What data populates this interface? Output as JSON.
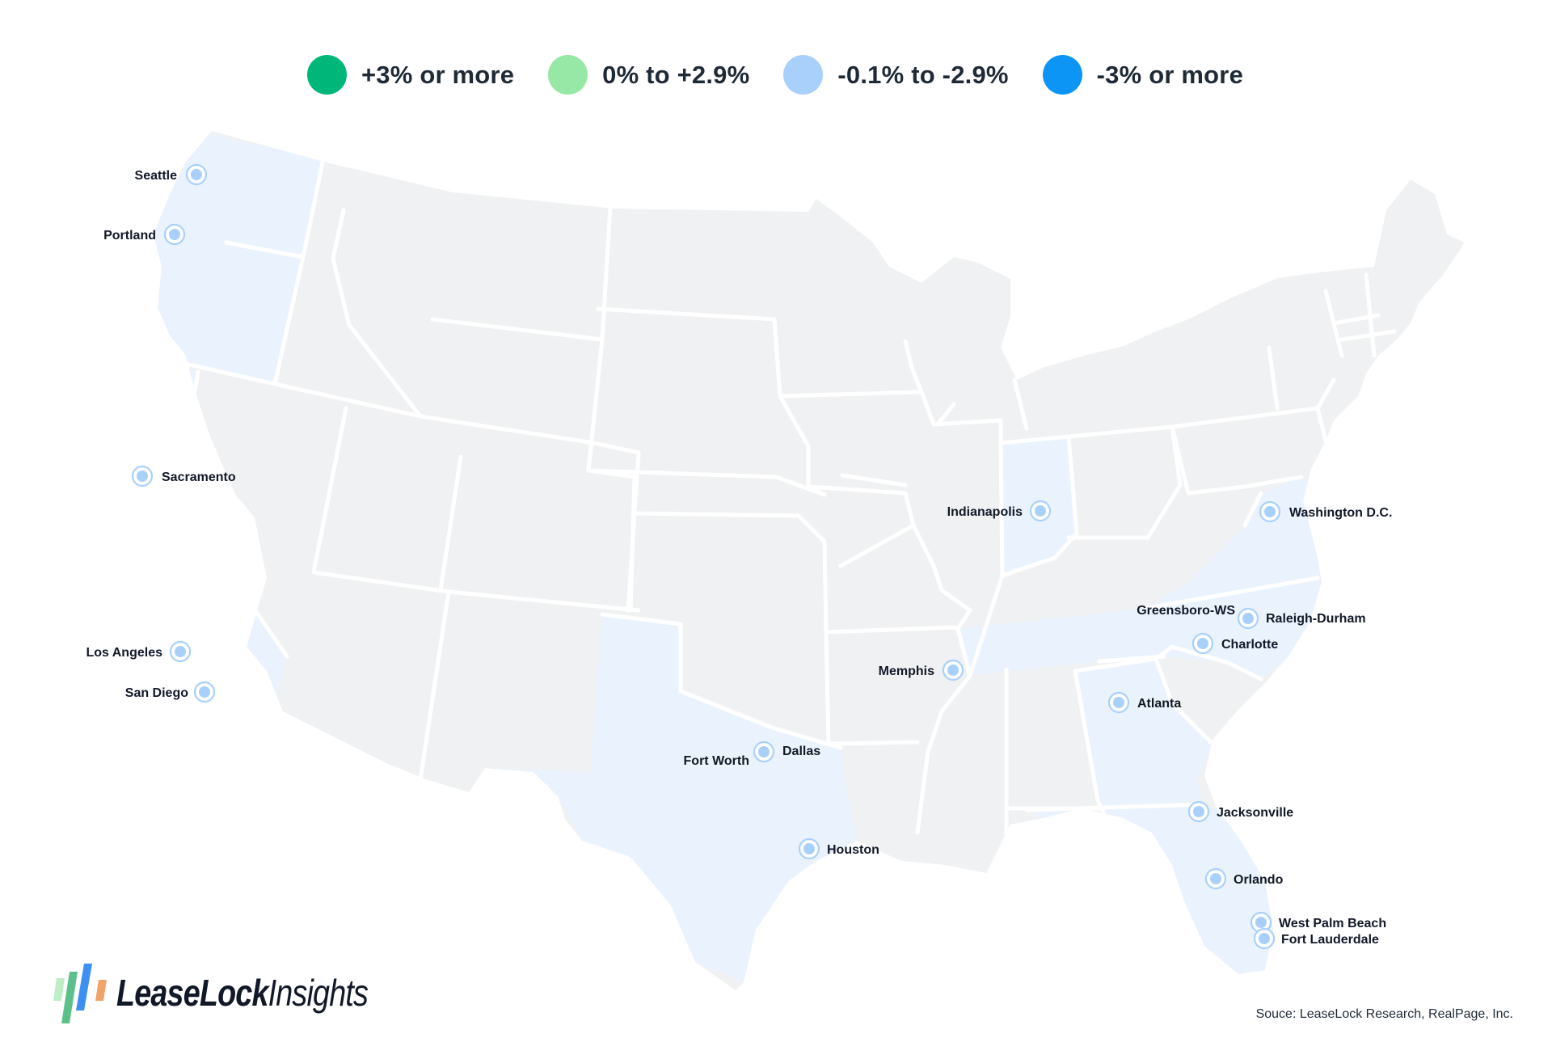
{
  "legend": [
    {
      "label": "+3% or more",
      "color": "#00b77a"
    },
    {
      "label": "0% to +2.9%",
      "color": "#97e8a7"
    },
    {
      "label": "-0.1% to -2.9%",
      "color": "#a9d0fb"
    },
    {
      "label": "-3% or more",
      "color": "#0d95f5"
    }
  ],
  "colors": {
    "state_default": "#f0f1f2",
    "state_highlight": "#eaf3fd",
    "border": "#ffffff",
    "marker_fill": "#a9d0fb",
    "marker_ring": "#a9d0fb",
    "label_text": "#111827"
  },
  "cities": [
    {
      "name": "Seattle",
      "category": "-0.1% to -2.9%"
    },
    {
      "name": "Portland",
      "category": "-0.1% to -2.9%"
    },
    {
      "name": "Sacramento",
      "category": "-0.1% to -2.9%"
    },
    {
      "name": "Los Angeles",
      "category": "-0.1% to -2.9%"
    },
    {
      "name": "San Diego",
      "category": "-0.1% to -2.9%"
    },
    {
      "name": "Fort Worth",
      "category": "-0.1% to -2.9%"
    },
    {
      "name": "Dallas",
      "category": "-0.1% to -2.9%"
    },
    {
      "name": "Houston",
      "category": "-0.1% to -2.9%"
    },
    {
      "name": "Indianapolis",
      "category": "-0.1% to -2.9%"
    },
    {
      "name": "Memphis",
      "category": "-0.1% to -2.9%"
    },
    {
      "name": "Atlanta",
      "category": "-0.1% to -2.9%"
    },
    {
      "name": "Greensboro-WS",
      "category": "-0.1% to -2.9%"
    },
    {
      "name": "Raleigh-Durham",
      "category": "-0.1% to -2.9%"
    },
    {
      "name": "Charlotte",
      "category": "-0.1% to -2.9%"
    },
    {
      "name": "Washington D.C.",
      "category": "-0.1% to -2.9%"
    },
    {
      "name": "Jacksonville",
      "category": "-0.1% to -2.9%"
    },
    {
      "name": "Orlando",
      "category": "-0.1% to -2.9%"
    },
    {
      "name": "West Palm Beach",
      "category": "-0.1% to -2.9%"
    },
    {
      "name": "Fort Lauderdale",
      "category": "-0.1% to -2.9%"
    }
  ],
  "source": "Souce: LeaseLock Research, RealPage, Inc.",
  "logo": {
    "brand": "LeaseLock",
    "suffix": "Insights",
    "bar_colors": [
      "#bdeec4",
      "#5cc08a",
      "#3d8ff0",
      "#f0a36a"
    ]
  }
}
